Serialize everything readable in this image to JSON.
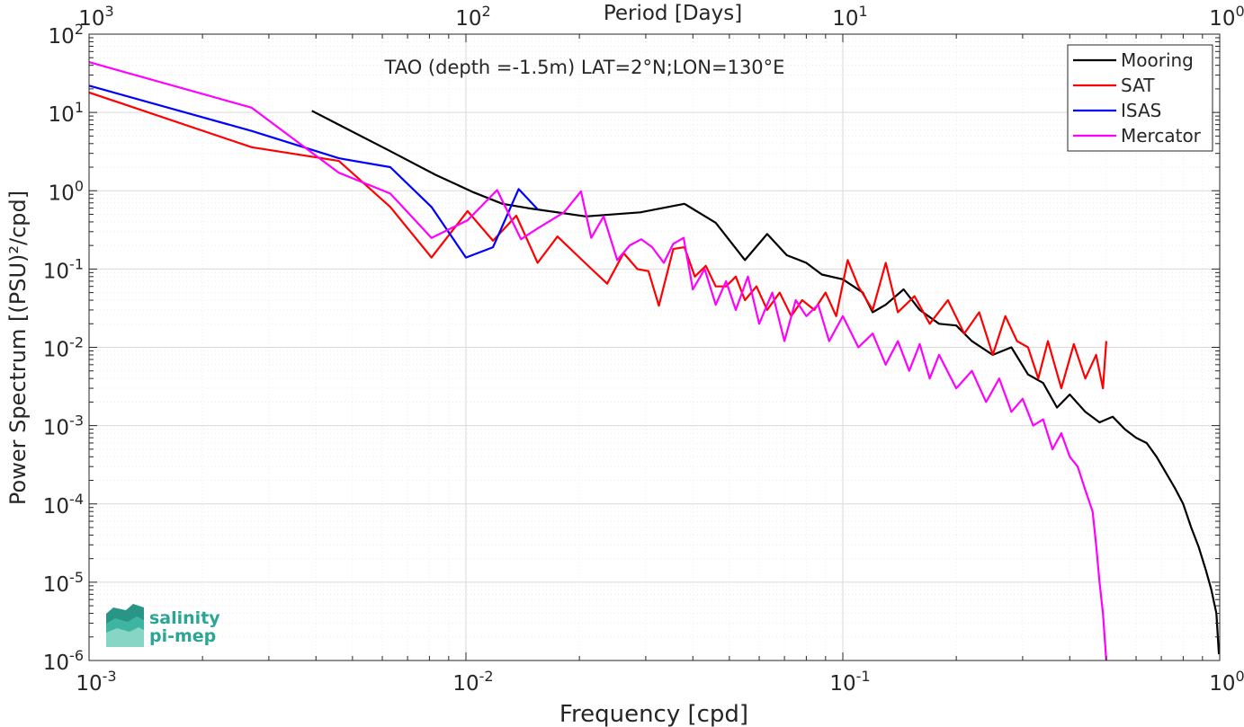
{
  "chart_data": {
    "type": "line",
    "title": "TAO (depth =-1.5m) LAT=2°N;LON=130°E",
    "xlabel": "Frequency [cpd]",
    "ylabel": "Power Spectrum [(PSU)²/cpd]",
    "x2label": "Period [Days]",
    "xscale": "log",
    "yscale": "log",
    "xlim": [
      0.001,
      1
    ],
    "ylim": [
      1e-06,
      100
    ],
    "grid": true,
    "legend_position": "top-right",
    "x_ticks": [
      {
        "base": "10",
        "exp": "-3"
      },
      {
        "base": "10",
        "exp": "-2"
      },
      {
        "base": "10",
        "exp": "-1"
      },
      {
        "base": "10",
        "exp": "0"
      }
    ],
    "y_ticks": [
      {
        "base": "10",
        "exp": "-6"
      },
      {
        "base": "10",
        "exp": "-5"
      },
      {
        "base": "10",
        "exp": "-4"
      },
      {
        "base": "10",
        "exp": "-3"
      },
      {
        "base": "10",
        "exp": "-2"
      },
      {
        "base": "10",
        "exp": "-1"
      },
      {
        "base": "10",
        "exp": "0"
      },
      {
        "base": "10",
        "exp": "1"
      },
      {
        "base": "10",
        "exp": "2"
      }
    ],
    "top_ticks": [
      {
        "base": "10",
        "exp": "3"
      },
      {
        "base": "10",
        "exp": "2"
      },
      {
        "base": "10",
        "exp": "1"
      },
      {
        "base": "10",
        "exp": "0"
      }
    ],
    "series": [
      {
        "name": "Mooring",
        "color": "#000000",
        "points": [
          [
            0.0039,
            10.5
          ],
          [
            0.0063,
            3.2
          ],
          [
            0.0083,
            1.6
          ],
          [
            0.0105,
            0.95
          ],
          [
            0.0125,
            0.68
          ],
          [
            0.0146,
            0.6
          ],
          [
            0.0208,
            0.47
          ],
          [
            0.029,
            0.53
          ],
          [
            0.038,
            0.68
          ],
          [
            0.046,
            0.39
          ],
          [
            0.055,
            0.13
          ],
          [
            0.063,
            0.28
          ],
          [
            0.071,
            0.15
          ],
          [
            0.08,
            0.12
          ],
          [
            0.088,
            0.085
          ],
          [
            0.1,
            0.074
          ],
          [
            0.113,
            0.05
          ],
          [
            0.12,
            0.028
          ],
          [
            0.13,
            0.035
          ],
          [
            0.145,
            0.055
          ],
          [
            0.16,
            0.03
          ],
          [
            0.18,
            0.02
          ],
          [
            0.2,
            0.019
          ],
          [
            0.22,
            0.012
          ],
          [
            0.25,
            0.008
          ],
          [
            0.28,
            0.01
          ],
          [
            0.31,
            0.0045
          ],
          [
            0.34,
            0.0035
          ],
          [
            0.37,
            0.0017
          ],
          [
            0.4,
            0.0025
          ],
          [
            0.44,
            0.0015
          ],
          [
            0.48,
            0.0011
          ],
          [
            0.52,
            0.0013
          ],
          [
            0.56,
            0.0009
          ],
          [
            0.6,
            0.0007
          ],
          [
            0.64,
            0.0006
          ],
          [
            0.68,
            0.0004
          ],
          [
            0.72,
            0.00025
          ],
          [
            0.76,
            0.00016
          ],
          [
            0.8,
            0.0001
          ],
          [
            0.84,
            5e-05
          ],
          [
            0.88,
            2.8e-05
          ],
          [
            0.92,
            1.4e-05
          ],
          [
            0.95,
            8e-06
          ],
          [
            0.98,
            4e-06
          ],
          [
            0.995,
            1.2e-06
          ]
        ]
      },
      {
        "name": "SAT",
        "color": "#ff0000",
        "points": [
          [
            0.001,
            18
          ],
          [
            0.0027,
            3.6
          ],
          [
            0.0046,
            2.4
          ],
          [
            0.0063,
            0.62
          ],
          [
            0.0081,
            0.14
          ],
          [
            0.0101,
            0.55
          ],
          [
            0.0118,
            0.23
          ],
          [
            0.0136,
            0.48
          ],
          [
            0.0155,
            0.12
          ],
          [
            0.0175,
            0.26
          ],
          [
            0.0207,
            0.12
          ],
          [
            0.0237,
            0.065
          ],
          [
            0.0262,
            0.16
          ],
          [
            0.0285,
            0.1
          ],
          [
            0.0305,
            0.094
          ],
          [
            0.0325,
            0.034
          ],
          [
            0.0355,
            0.18
          ],
          [
            0.038,
            0.19
          ],
          [
            0.0405,
            0.08
          ],
          [
            0.0433,
            0.11
          ],
          [
            0.046,
            0.06
          ],
          [
            0.049,
            0.06
          ],
          [
            0.052,
            0.08
          ],
          [
            0.055,
            0.04
          ],
          [
            0.059,
            0.06
          ],
          [
            0.063,
            0.03
          ],
          [
            0.068,
            0.05
          ],
          [
            0.073,
            0.025
          ],
          [
            0.078,
            0.04
          ],
          [
            0.084,
            0.03
          ],
          [
            0.09,
            0.05
          ],
          [
            0.096,
            0.025
          ],
          [
            0.103,
            0.13
          ],
          [
            0.11,
            0.06
          ],
          [
            0.12,
            0.03
          ],
          [
            0.13,
            0.12
          ],
          [
            0.14,
            0.028
          ],
          [
            0.155,
            0.045
          ],
          [
            0.17,
            0.02
          ],
          [
            0.19,
            0.04
          ],
          [
            0.21,
            0.015
          ],
          [
            0.23,
            0.028
          ],
          [
            0.25,
            0.008
          ],
          [
            0.27,
            0.025
          ],
          [
            0.29,
            0.012
          ],
          [
            0.31,
            0.01
          ],
          [
            0.33,
            0.004
          ],
          [
            0.35,
            0.012
          ],
          [
            0.38,
            0.003
          ],
          [
            0.41,
            0.011
          ],
          [
            0.44,
            0.004
          ],
          [
            0.47,
            0.008
          ],
          [
            0.49,
            0.003
          ],
          [
            0.5,
            0.012
          ]
        ]
      },
      {
        "name": "ISAS",
        "color": "#0000ff",
        "points": [
          [
            0.001,
            22
          ],
          [
            0.0027,
            5.8
          ],
          [
            0.0046,
            2.6
          ],
          [
            0.0063,
            2.0
          ],
          [
            0.0081,
            0.62
          ],
          [
            0.01,
            0.14
          ],
          [
            0.0118,
            0.19
          ],
          [
            0.0138,
            1.05
          ],
          [
            0.0155,
            0.58
          ]
        ]
      },
      {
        "name": "Mercator",
        "color": "#ff00ff",
        "points": [
          [
            0.001,
            44
          ],
          [
            0.0027,
            11.5
          ],
          [
            0.0046,
            1.7
          ],
          [
            0.0063,
            0.92
          ],
          [
            0.0081,
            0.25
          ],
          [
            0.0101,
            0.42
          ],
          [
            0.0121,
            1.02
          ],
          [
            0.014,
            0.24
          ],
          [
            0.0155,
            0.33
          ],
          [
            0.0182,
            0.53
          ],
          [
            0.0202,
            0.98
          ],
          [
            0.0215,
            0.25
          ],
          [
            0.0232,
            0.47
          ],
          [
            0.0252,
            0.13
          ],
          [
            0.0272,
            0.2
          ],
          [
            0.0292,
            0.24
          ],
          [
            0.0312,
            0.19
          ],
          [
            0.0335,
            0.12
          ],
          [
            0.0355,
            0.21
          ],
          [
            0.0378,
            0.25
          ],
          [
            0.04,
            0.055
          ],
          [
            0.043,
            0.1
          ],
          [
            0.046,
            0.035
          ],
          [
            0.049,
            0.07
          ],
          [
            0.052,
            0.03
          ],
          [
            0.056,
            0.08
          ],
          [
            0.06,
            0.02
          ],
          [
            0.065,
            0.05
          ],
          [
            0.07,
            0.012
          ],
          [
            0.075,
            0.04
          ],
          [
            0.08,
            0.025
          ],
          [
            0.086,
            0.035
          ],
          [
            0.092,
            0.012
          ],
          [
            0.1,
            0.025
          ],
          [
            0.11,
            0.01
          ],
          [
            0.12,
            0.015
          ],
          [
            0.13,
            0.006
          ],
          [
            0.14,
            0.012
          ],
          [
            0.15,
            0.005
          ],
          [
            0.16,
            0.011
          ],
          [
            0.17,
            0.004
          ],
          [
            0.18,
            0.008
          ],
          [
            0.2,
            0.003
          ],
          [
            0.22,
            0.005
          ],
          [
            0.24,
            0.002
          ],
          [
            0.26,
            0.004
          ],
          [
            0.28,
            0.0015
          ],
          [
            0.3,
            0.0022
          ],
          [
            0.32,
            0.001
          ],
          [
            0.34,
            0.0012
          ],
          [
            0.36,
            0.0005
          ],
          [
            0.38,
            0.0008
          ],
          [
            0.4,
            0.0004
          ],
          [
            0.42,
            0.0003
          ],
          [
            0.44,
            0.00015
          ],
          [
            0.46,
            8e-05
          ],
          [
            0.47,
            3e-05
          ],
          [
            0.48,
            1e-05
          ],
          [
            0.49,
            4e-06
          ],
          [
            0.5,
            1e-06
          ]
        ]
      }
    ]
  },
  "logo": {
    "line1": "salinity",
    "line2": "pi-mep",
    "color": "#2aa596"
  }
}
